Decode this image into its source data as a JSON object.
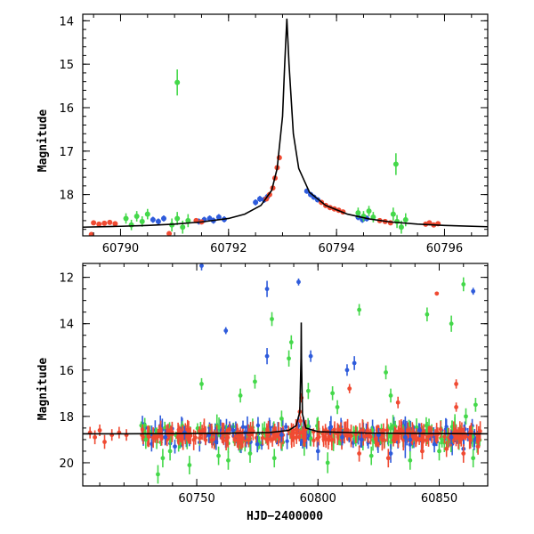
{
  "chart_data": [
    {
      "type": "scatter",
      "ylabel": "Magnitude",
      "xlabel": "",
      "xlim": [
        60789.3,
        60796.8
      ],
      "ylim": [
        18.95,
        13.85
      ],
      "y_inverted": true,
      "xticks": [
        60790,
        60792,
        60794,
        60796
      ],
      "xtick_labels": [
        "60790",
        "60792",
        "60794",
        "60796"
      ],
      "yticks": [
        14,
        15,
        16,
        17,
        18
      ],
      "ytick_labels": [
        "14",
        "15",
        "16",
        "17",
        "18"
      ],
      "model": {
        "color": "#000000",
        "x": [
          60789.3,
          60790.0,
          60790.5,
          60791.0,
          60791.5,
          60792.0,
          60792.3,
          60792.6,
          60792.8,
          60792.9,
          60793.0,
          60793.04,
          60793.08,
          60793.12,
          60793.2,
          60793.3,
          60793.5,
          60793.8,
          60794.2,
          60794.6,
          60795.0,
          60795.5,
          60796.0,
          60796.8
        ],
        "y": [
          18.75,
          18.73,
          18.71,
          18.68,
          18.63,
          18.55,
          18.45,
          18.25,
          17.9,
          17.4,
          16.2,
          15.0,
          13.95,
          15.0,
          16.6,
          17.4,
          17.95,
          18.25,
          18.45,
          18.56,
          18.63,
          18.68,
          18.71,
          18.74
        ]
      },
      "series": [
        {
          "color": "#2e5bdb",
          "points": [
            {
              "x": 60791.45,
              "y": 18.62,
              "e": 0.07
            },
            {
              "x": 60791.55,
              "y": 18.58,
              "e": 0.07
            },
            {
              "x": 60791.65,
              "y": 18.55,
              "e": 0.07
            },
            {
              "x": 60791.72,
              "y": 18.6,
              "e": 0.07
            },
            {
              "x": 60791.82,
              "y": 18.52,
              "e": 0.07
            },
            {
              "x": 60791.92,
              "y": 18.57,
              "e": 0.07
            },
            {
              "x": 60790.6,
              "y": 18.58,
              "e": 0.07
            },
            {
              "x": 60790.7,
              "y": 18.62,
              "e": 0.07
            },
            {
              "x": 60790.8,
              "y": 18.55,
              "e": 0.07
            },
            {
              "x": 60792.5,
              "y": 18.18,
              "e": 0.07
            },
            {
              "x": 60792.58,
              "y": 18.1,
              "e": 0.07
            },
            {
              "x": 60792.66,
              "y": 18.12,
              "e": 0.07
            },
            {
              "x": 60792.72,
              "y": 18.05,
              "e": 0.07
            },
            {
              "x": 60793.45,
              "y": 17.92,
              "e": 0.06
            },
            {
              "x": 60793.52,
              "y": 18.0,
              "e": 0.06
            },
            {
              "x": 60793.58,
              "y": 18.06,
              "e": 0.06
            },
            {
              "x": 60793.65,
              "y": 18.12,
              "e": 0.06
            },
            {
              "x": 60794.4,
              "y": 18.52,
              "e": 0.07
            },
            {
              "x": 60794.48,
              "y": 18.58,
              "e": 0.07
            },
            {
              "x": 60794.56,
              "y": 18.55,
              "e": 0.07
            }
          ]
        },
        {
          "color": "#f04a32",
          "points": [
            {
              "x": 60789.5,
              "y": 18.65,
              "e": 0.05
            },
            {
              "x": 60789.6,
              "y": 18.68,
              "e": 0.05
            },
            {
              "x": 60789.7,
              "y": 18.66,
              "e": 0.05
            },
            {
              "x": 60789.8,
              "y": 18.64,
              "e": 0.05
            },
            {
              "x": 60789.9,
              "y": 18.67,
              "e": 0.05
            },
            {
              "x": 60789.46,
              "y": 18.92,
              "e": 0.03
            },
            {
              "x": 60791.4,
              "y": 18.6,
              "e": 0.05
            },
            {
              "x": 60791.5,
              "y": 18.63,
              "e": 0.05
            },
            {
              "x": 60790.9,
              "y": 18.9,
              "e": 0.03
            },
            {
              "x": 60792.82,
              "y": 17.85,
              "e": 0.04
            },
            {
              "x": 60792.86,
              "y": 17.62,
              "e": 0.04
            },
            {
              "x": 60792.9,
              "y": 17.38,
              "e": 0.04
            },
            {
              "x": 60792.94,
              "y": 17.15,
              "e": 0.04
            },
            {
              "x": 60792.76,
              "y": 18.0,
              "e": 0.04
            },
            {
              "x": 60792.7,
              "y": 18.1,
              "e": 0.04
            },
            {
              "x": 60793.72,
              "y": 18.18,
              "e": 0.05
            },
            {
              "x": 60793.8,
              "y": 18.25,
              "e": 0.05
            },
            {
              "x": 60793.88,
              "y": 18.3,
              "e": 0.05
            },
            {
              "x": 60793.96,
              "y": 18.33,
              "e": 0.05
            },
            {
              "x": 60794.04,
              "y": 18.36,
              "e": 0.05
            },
            {
              "x": 60794.12,
              "y": 18.4,
              "e": 0.05
            },
            {
              "x": 60794.8,
              "y": 18.6,
              "e": 0.05
            },
            {
              "x": 60794.9,
              "y": 18.62,
              "e": 0.05
            },
            {
              "x": 60795.0,
              "y": 18.65,
              "e": 0.05
            },
            {
              "x": 60795.65,
              "y": 18.68,
              "e": 0.05
            },
            {
              "x": 60795.72,
              "y": 18.65,
              "e": 0.05
            },
            {
              "x": 60795.8,
              "y": 18.7,
              "e": 0.05
            },
            {
              "x": 60795.88,
              "y": 18.67,
              "e": 0.05
            }
          ]
        },
        {
          "color": "#44d84a",
          "points": [
            {
              "x": 60790.1,
              "y": 18.55,
              "e": 0.12
            },
            {
              "x": 60790.2,
              "y": 18.7,
              "e": 0.12
            },
            {
              "x": 60790.3,
              "y": 18.5,
              "e": 0.12
            },
            {
              "x": 60790.4,
              "y": 18.62,
              "e": 0.12
            },
            {
              "x": 60790.5,
              "y": 18.45,
              "e": 0.12
            },
            {
              "x": 60791.05,
              "y": 15.42,
              "e": 0.3
            },
            {
              "x": 60790.95,
              "y": 18.7,
              "e": 0.15
            },
            {
              "x": 60791.05,
              "y": 18.55,
              "e": 0.15
            },
            {
              "x": 60791.15,
              "y": 18.75,
              "e": 0.15
            },
            {
              "x": 60791.25,
              "y": 18.6,
              "e": 0.15
            },
            {
              "x": 60794.4,
              "y": 18.42,
              "e": 0.12
            },
            {
              "x": 60794.5,
              "y": 18.5,
              "e": 0.12
            },
            {
              "x": 60794.6,
              "y": 18.38,
              "e": 0.12
            },
            {
              "x": 60794.68,
              "y": 18.52,
              "e": 0.12
            },
            {
              "x": 60795.05,
              "y": 18.45,
              "e": 0.15
            },
            {
              "x": 60795.12,
              "y": 18.62,
              "e": 0.15
            },
            {
              "x": 60795.2,
              "y": 18.75,
              "e": 0.15
            },
            {
              "x": 60795.28,
              "y": 18.58,
              "e": 0.15
            },
            {
              "x": 60795.1,
              "y": 17.3,
              "e": 0.25
            }
          ]
        }
      ]
    },
    {
      "type": "scatter",
      "ylabel": "Magnitude",
      "xlabel": "HJD−2400000",
      "xlim": [
        60703,
        60870
      ],
      "ylim": [
        21.0,
        11.4
      ],
      "y_inverted": true,
      "xticks": [
        60750,
        60800,
        60850
      ],
      "xtick_labels": [
        "60750",
        "60800",
        "60850"
      ],
      "yticks": [
        12,
        14,
        16,
        18,
        20
      ],
      "ytick_labels": [
        "12",
        "14",
        "16",
        "18",
        "20"
      ],
      "model": {
        "color": "#000000",
        "x": [
          60703,
          60720,
          60740,
          60760,
          60780,
          60788,
          60791,
          60792.5,
          60793.0,
          60793.1,
          60793.2,
          60793.6,
          60795,
          60800,
          60820,
          60850,
          60870
        ],
        "y": [
          18.75,
          18.75,
          18.74,
          18.73,
          18.7,
          18.6,
          18.4,
          17.8,
          15.5,
          13.95,
          15.5,
          17.9,
          18.5,
          18.66,
          18.72,
          18.74,
          18.75
        ]
      },
      "series": [
        {
          "color": "#2e5bdb",
          "points": [
            {
              "x": 60752,
              "y": 11.5,
              "e": 0.2
            },
            {
              "x": 60762,
              "y": 14.3,
              "e": 0.15
            },
            {
              "x": 60779,
              "y": 12.5,
              "e": 0.35
            },
            {
              "x": 60779,
              "y": 15.4,
              "e": 0.35
            },
            {
              "x": 60792,
              "y": 12.2,
              "e": 0.15
            },
            {
              "x": 60797,
              "y": 15.4,
              "e": 0.25
            },
            {
              "x": 60812,
              "y": 16.0,
              "e": 0.25
            },
            {
              "x": 60815,
              "y": 15.7,
              "e": 0.3
            },
            {
              "x": 60864,
              "y": 12.6,
              "e": 0.15
            },
            {
              "x": 60836,
              "y": 18.9,
              "e": 0.9
            },
            {
              "x": 60737,
              "y": 18.9,
              "e": 0.35
            },
            {
              "x": 60745,
              "y": 18.7,
              "e": 0.3
            },
            {
              "x": 60755,
              "y": 18.8,
              "e": 0.35
            },
            {
              "x": 60765,
              "y": 18.6,
              "e": 0.3
            },
            {
              "x": 60775,
              "y": 19.2,
              "e": 0.35
            },
            {
              "x": 60785,
              "y": 18.8,
              "e": 0.3
            },
            {
              "x": 60800,
              "y": 19.5,
              "e": 0.4
            },
            {
              "x": 60805,
              "y": 18.5,
              "e": 0.3
            },
            {
              "x": 60818,
              "y": 19.0,
              "e": 0.35
            },
            {
              "x": 60825,
              "y": 18.8,
              "e": 0.3
            },
            {
              "x": 60830,
              "y": 19.6,
              "e": 0.4
            },
            {
              "x": 60842,
              "y": 18.6,
              "e": 0.3
            },
            {
              "x": 60848,
              "y": 19.2,
              "e": 0.35
            },
            {
              "x": 60855,
              "y": 18.9,
              "e": 0.3
            },
            {
              "x": 60860,
              "y": 19.4,
              "e": 0.4
            },
            {
              "x": 60741,
              "y": 19.3,
              "e": 0.3
            },
            {
              "x": 60758,
              "y": 19.1,
              "e": 0.35
            },
            {
              "x": 60770,
              "y": 18.7,
              "e": 0.3
            },
            {
              "x": 60810,
              "y": 18.9,
              "e": 0.35
            },
            {
              "x": 60838,
              "y": 19.0,
              "e": 0.3
            }
          ]
        },
        {
          "color": "#f04a32",
          "points": [
            {
              "x": 60706,
              "y": 18.7,
              "e": 0.25
            },
            {
              "x": 60708,
              "y": 18.9,
              "e": 0.3
            },
            {
              "x": 60710,
              "y": 18.6,
              "e": 0.25
            },
            {
              "x": 60712,
              "y": 19.1,
              "e": 0.3
            },
            {
              "x": 60715,
              "y": 18.8,
              "e": 0.25
            },
            {
              "x": 60718,
              "y": 18.7,
              "e": 0.25
            },
            {
              "x": 60721,
              "y": 18.8,
              "e": 0.25
            },
            {
              "x": 60849,
              "y": 12.7,
              "e": 0.05
            },
            {
              "x": 60857,
              "y": 16.6,
              "e": 0.2
            },
            {
              "x": 60857,
              "y": 17.6,
              "e": 0.2
            },
            {
              "x": 60813,
              "y": 16.8,
              "e": 0.2
            },
            {
              "x": 60827,
              "y": 18.6,
              "e": 0.3
            },
            {
              "x": 60833,
              "y": 17.4,
              "e": 0.25
            },
            {
              "x": 60829,
              "y": 19.8,
              "e": 0.4
            },
            {
              "x": 60817,
              "y": 19.6,
              "e": 0.35
            },
            {
              "x": 60843,
              "y": 19.5,
              "e": 0.35
            },
            {
              "x": 60860,
              "y": 19.6,
              "e": 0.4
            },
            {
              "x": 60866,
              "y": 19.3,
              "e": 0.35
            },
            {
              "x": 60853,
              "y": 19.4,
              "e": 0.35
            },
            {
              "x": 60792.5,
              "y": 17.8,
              "e": 0.2
            },
            {
              "x": 60793.2,
              "y": 17.2,
              "e": 0.2
            },
            {
              "x": 60792.8,
              "y": 18.2,
              "e": 0.2
            }
          ]
        },
        {
          "color": "#44d84a",
          "points": [
            {
              "x": 60752,
              "y": 16.6,
              "e": 0.25
            },
            {
              "x": 60768,
              "y": 17.1,
              "e": 0.3
            },
            {
              "x": 60774,
              "y": 16.5,
              "e": 0.3
            },
            {
              "x": 60781,
              "y": 13.8,
              "e": 0.3
            },
            {
              "x": 60788,
              "y": 15.5,
              "e": 0.35
            },
            {
              "x": 60789,
              "y": 14.8,
              "e": 0.3
            },
            {
              "x": 60785,
              "y": 18.1,
              "e": 0.35
            },
            {
              "x": 60796,
              "y": 16.9,
              "e": 0.35
            },
            {
              "x": 60806,
              "y": 17.0,
              "e": 0.3
            },
            {
              "x": 60808,
              "y": 17.6,
              "e": 0.3
            },
            {
              "x": 60817,
              "y": 13.4,
              "e": 0.25
            },
            {
              "x": 60828,
              "y": 16.1,
              "e": 0.3
            },
            {
              "x": 60830,
              "y": 17.1,
              "e": 0.3
            },
            {
              "x": 60845,
              "y": 13.6,
              "e": 0.3
            },
            {
              "x": 60855,
              "y": 14.0,
              "e": 0.35
            },
            {
              "x": 60860,
              "y": 12.3,
              "e": 0.3
            },
            {
              "x": 60861,
              "y": 18.0,
              "e": 0.35
            },
            {
              "x": 60865,
              "y": 17.5,
              "e": 0.3
            },
            {
              "x": 60734,
              "y": 20.5,
              "e": 0.4
            },
            {
              "x": 60736,
              "y": 19.8,
              "e": 0.4
            },
            {
              "x": 60739,
              "y": 19.5,
              "e": 0.4
            },
            {
              "x": 60747,
              "y": 20.1,
              "e": 0.4
            },
            {
              "x": 60759,
              "y": 19.7,
              "e": 0.4
            },
            {
              "x": 60763,
              "y": 19.9,
              "e": 0.4
            },
            {
              "x": 60772,
              "y": 19.6,
              "e": 0.4
            },
            {
              "x": 60782,
              "y": 19.8,
              "e": 0.4
            },
            {
              "x": 60804,
              "y": 20.0,
              "e": 0.45
            },
            {
              "x": 60822,
              "y": 19.7,
              "e": 0.4
            },
            {
              "x": 60838,
              "y": 19.9,
              "e": 0.4
            },
            {
              "x": 60850,
              "y": 19.5,
              "e": 0.4
            },
            {
              "x": 60864,
              "y": 19.8,
              "e": 0.4
            },
            {
              "x": 60729,
              "y": 19.0,
              "e": 0.4
            }
          ]
        }
      ],
      "dense_cluster": {
        "colors": [
          "#2e5bdb",
          "#44d84a",
          "#f04a32"
        ],
        "x_range": [
          60727,
          60867
        ],
        "y_center": 18.8,
        "y_spread": 0.35,
        "count_per_color": [
          160,
          120,
          260
        ]
      }
    }
  ]
}
